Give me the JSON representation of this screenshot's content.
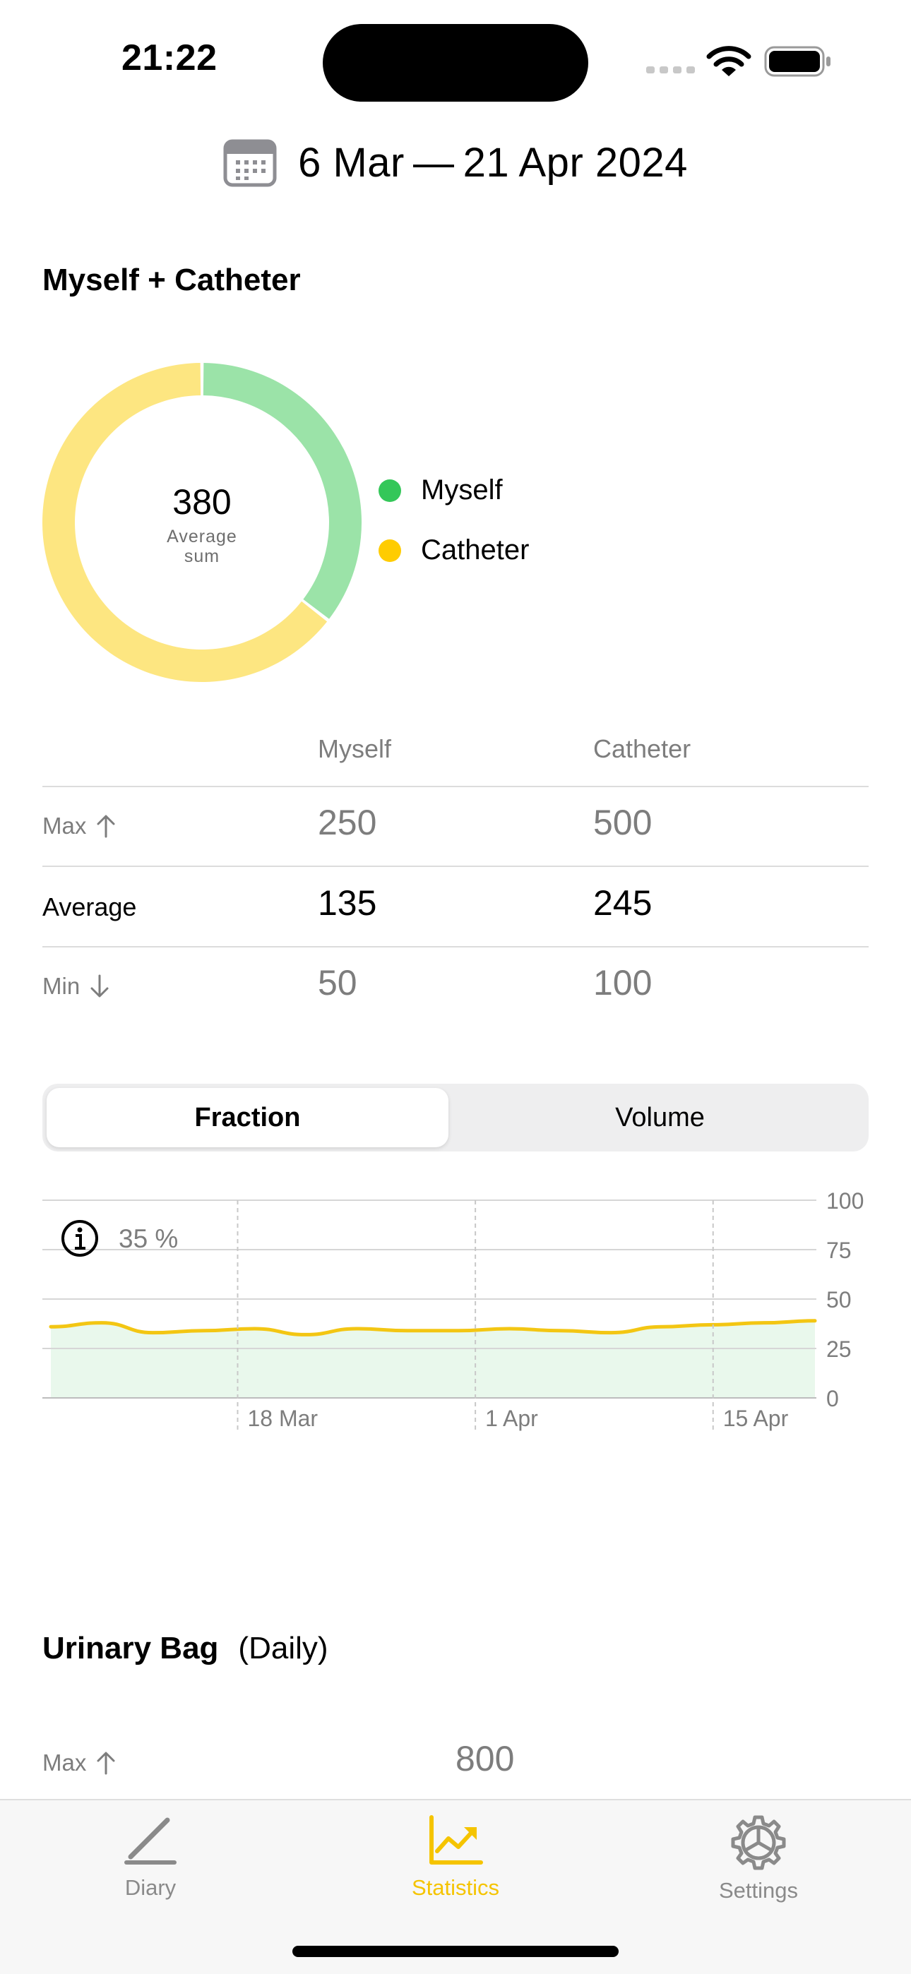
{
  "status_bar": {
    "time": "21:22"
  },
  "header": {
    "date_range": "6 Mar — 21 Apr 2024"
  },
  "summary": {
    "title": "Myself + Catheter",
    "donut": {
      "center_value": "380",
      "center_label_line1": "Average",
      "center_label_line2": "sum",
      "segments": [
        {
          "name": "Myself",
          "fraction": 0.355,
          "color": "#9be3a8"
        },
        {
          "name": "Catheter",
          "fraction": 0.645,
          "color": "#fde681"
        }
      ]
    },
    "legend": [
      {
        "label": "Myself",
        "color": "#34c759"
      },
      {
        "label": "Catheter",
        "color": "#ffcc00"
      }
    ],
    "table": {
      "columns": [
        "Myself",
        "Catheter"
      ],
      "rows": [
        {
          "label": "Max",
          "icon": "arrow-up-icon",
          "values": [
            "250",
            "500"
          ]
        },
        {
          "label": "Average",
          "icon": "",
          "values": [
            "135",
            "245"
          ]
        },
        {
          "label": "Min",
          "icon": "arrow-down-icon",
          "values": [
            "50",
            "100"
          ]
        }
      ]
    }
  },
  "segmented": {
    "fraction_label": "Fraction",
    "volume_label": "Volume",
    "selected": "Fraction"
  },
  "chart_data": {
    "type": "area",
    "info_value": "35 %",
    "x": [
      "2024-03-07",
      "2024-03-10",
      "2024-03-13",
      "2024-03-16",
      "2024-03-19",
      "2024-03-22",
      "2024-03-25",
      "2024-03-28",
      "2024-03-31",
      "2024-04-03",
      "2024-04-06",
      "2024-04-09",
      "2024-04-12",
      "2024-04-15",
      "2024-04-18",
      "2024-04-21"
    ],
    "values": [
      36,
      38,
      33,
      34,
      35,
      32,
      35,
      34,
      34,
      35,
      34,
      33,
      36,
      37,
      38,
      39
    ],
    "x_ticks": [
      "18 Mar",
      "1 Apr",
      "15 Apr"
    ],
    "x_tick_dates": [
      "2024-03-18",
      "2024-04-01",
      "2024-04-15"
    ],
    "x_range": [
      "2024-03-07",
      "2024-04-21"
    ],
    "y_ticks": [
      0,
      25,
      50,
      75,
      100
    ],
    "ylim": [
      0,
      100
    ],
    "line_color": "#f3c613",
    "fill_color": "#e9f8ec",
    "grid": true
  },
  "urinary_bag": {
    "title": "Urinary Bag",
    "subtitle": "(Daily)",
    "max_label": "Max",
    "max_value": "800"
  },
  "tab_bar": {
    "items": [
      {
        "label": "Diary",
        "icon": "pencil-icon"
      },
      {
        "label": "Statistics",
        "icon": "chart-icon"
      },
      {
        "label": "Settings",
        "icon": "gear-icon"
      }
    ],
    "active": "Statistics",
    "active_color": "#f5c400"
  }
}
